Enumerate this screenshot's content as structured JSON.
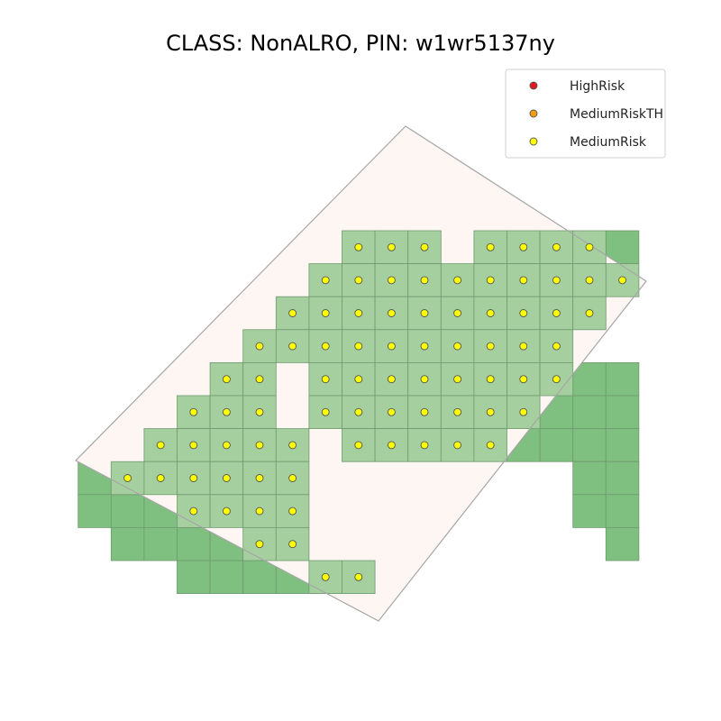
{
  "chart_data": {
    "type": "scatter",
    "title": "CLASS: NonALRO, PIN: w1wr5137ny",
    "legend": {
      "placement": "top-right",
      "entries": [
        {
          "label": "HighRisk",
          "color": "#e31a1c"
        },
        {
          "label": "MediumRiskTH",
          "color": "#f39c12"
        },
        {
          "label": "MediumRisk",
          "color": "#ffff00"
        }
      ]
    },
    "axes_visible": false,
    "grid": false,
    "colors": {
      "cell_outside": "#7fbf7f",
      "cell_inside": "#a6cfa0",
      "cell_edge": "#6f9a6f",
      "parcel_fill": "#fdf6f3",
      "parcel_edge": "#a6a6a6",
      "point_edge": "#555555"
    },
    "grid_cells": [
      {
        "row": 0,
        "cols": [
          0,
          1,
          2,
          4,
          5,
          6,
          7,
          8
        ]
      },
      {
        "row": 1,
        "cols": [
          -1,
          0,
          1,
          2,
          3,
          4,
          5,
          6,
          7,
          8
        ]
      },
      {
        "row": 2,
        "cols": [
          -2,
          -1,
          0,
          1,
          2,
          3,
          4,
          5,
          6,
          7
        ]
      },
      {
        "row": 3,
        "cols": [
          -3,
          -2,
          -1,
          0,
          1,
          2,
          3,
          4,
          5,
          6
        ]
      },
      {
        "row": 4,
        "cols": [
          -4,
          -3,
          -1,
          0,
          1,
          2,
          3,
          4,
          5,
          6,
          7,
          8
        ]
      },
      {
        "row": 5,
        "cols": [
          -5,
          -4,
          -3,
          -1,
          0,
          1,
          2,
          3,
          4,
          5,
          6,
          7,
          8
        ]
      },
      {
        "row": 6,
        "cols": [
          -6,
          -5,
          -4,
          -3,
          -2,
          0,
          1,
          2,
          3,
          4,
          5,
          6,
          7,
          8
        ]
      },
      {
        "row": 7,
        "cols": [
          -8,
          -7,
          -6,
          -5,
          -4,
          -3,
          -2,
          7,
          8
        ]
      },
      {
        "row": 8,
        "cols": [
          -8,
          -7,
          -6,
          -5,
          -4,
          -3,
          -2,
          7,
          8
        ]
      },
      {
        "row": 9,
        "cols": [
          -7,
          -6,
          -5,
          -4,
          -3,
          -2,
          8
        ]
      },
      {
        "row": 10,
        "cols": [
          -5,
          -4,
          -3,
          -2,
          -1,
          0
        ]
      }
    ],
    "series": [
      {
        "name": "MediumRisk",
        "color": "#ffff00",
        "points": [
          {
            "row": 0,
            "cols": [
              0,
              1,
              2,
              4,
              5,
              6,
              7
            ]
          },
          {
            "row": 1,
            "cols": [
              -1,
              0,
              1,
              2,
              3,
              4,
              5,
              6,
              7,
              8
            ]
          },
          {
            "row": 2,
            "cols": [
              -2,
              -1,
              0,
              1,
              2,
              3,
              4,
              5,
              6,
              7
            ]
          },
          {
            "row": 3,
            "cols": [
              -3,
              -2,
              -1,
              0,
              1,
              2,
              3,
              4,
              5,
              6
            ]
          },
          {
            "row": 4,
            "cols": [
              -4,
              -3,
              -1,
              0,
              1,
              2,
              3,
              4,
              5,
              6
            ]
          },
          {
            "row": 5,
            "cols": [
              -5,
              -4,
              -3,
              -1,
              0,
              1,
              2,
              3,
              4,
              5
            ]
          },
          {
            "row": 6,
            "cols": [
              -6,
              -5,
              -4,
              -3,
              -2,
              0,
              1,
              2,
              3,
              4
            ]
          },
          {
            "row": 7,
            "cols": [
              -7,
              -6,
              -5,
              -4,
              -3,
              -2
            ]
          },
          {
            "row": 8,
            "cols": [
              -5,
              -4,
              -3,
              -2
            ]
          },
          {
            "row": 9,
            "cols": [
              -3,
              -2
            ]
          },
          {
            "row": 10,
            "cols": [
              -1,
              0
            ]
          }
        ]
      }
    ]
  }
}
